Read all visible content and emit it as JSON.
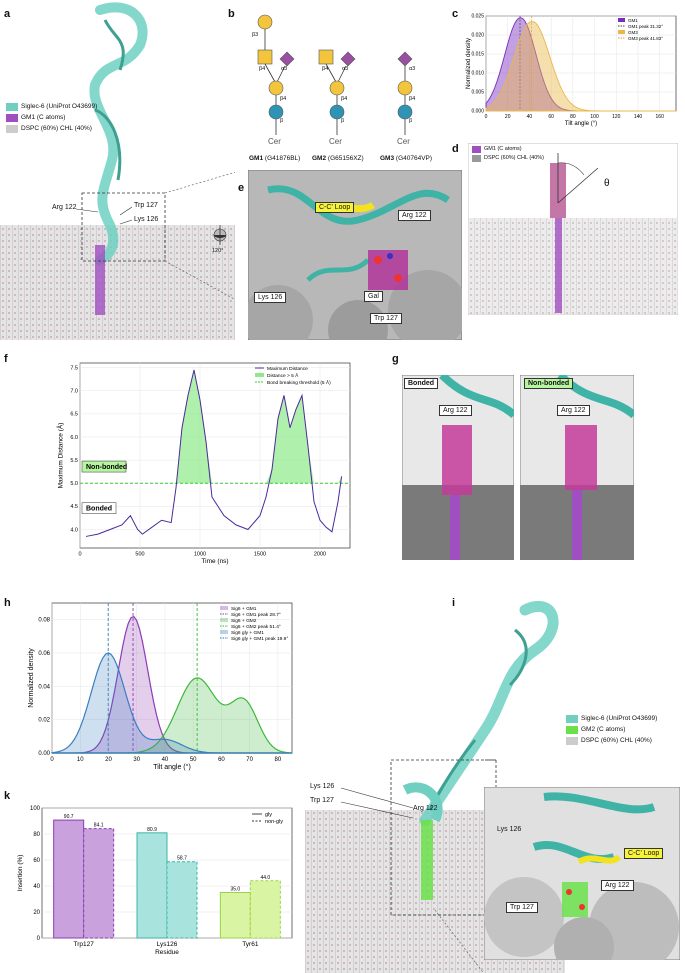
{
  "panels": {
    "a": {
      "letter": "a",
      "legend": [
        {
          "label": "Siglec-6 (UniProt O43699)",
          "color": "#6fd0c2"
        },
        {
          "label": "GM1 (C atoms)",
          "color": "#a04fc0"
        },
        {
          "label": "DSPC (60%) CHL (40%)",
          "color": "#cccccc"
        }
      ],
      "labels": [
        "Arg 122",
        "Trp 127",
        "Lys 126"
      ],
      "rotation": "120°"
    },
    "b": {
      "letter": "b",
      "glycans": [
        {
          "name": "GM1",
          "id": "(G41876BL)",
          "links": [
            "β3",
            "β4",
            "α3",
            "β4",
            "β"
          ]
        },
        {
          "name": "GM2",
          "id": "(G65156XZ)",
          "links": [
            "β4",
            "α3",
            "β4",
            "β"
          ]
        },
        {
          "name": "GM3",
          "id": "(G40764VP)",
          "links": [
            "α3",
            "β4",
            "β"
          ]
        }
      ],
      "cer": "Cer"
    },
    "c": {
      "letter": "c"
    },
    "d": {
      "letter": "d",
      "legend": [
        {
          "label": "GM1 (C atoms)",
          "color": "#a04fc0"
        },
        {
          "label": "DSPC (60%) CHL (40%)",
          "color": "#999999"
        }
      ],
      "theta": "θ"
    },
    "e": {
      "letter": "e",
      "labels": [
        "C-C' Loop",
        "Arg 122",
        "Lys 126",
        "Gal",
        "Trp 127"
      ]
    },
    "f": {
      "letter": "f",
      "inner_labels": [
        "Non-bonded",
        "Bonded"
      ]
    },
    "g": {
      "letter": "g",
      "tags": [
        "Bonded",
        "Non-bonded"
      ],
      "arg": "Arg 122"
    },
    "h": {
      "letter": "h"
    },
    "i": {
      "letter": "i",
      "legend": [
        {
          "label": "Siglec-6 (UniProt O43699)",
          "color": "#6fd0c2"
        },
        {
          "label": "GM2 (C atoms)",
          "color": "#6be04a"
        },
        {
          "label": "DSPC (60%) CHL (40%)",
          "color": "#cccccc"
        }
      ],
      "labels": [
        "Lys 126",
        "Trp 127",
        "Arg 122"
      ]
    },
    "j": {
      "letter": "j",
      "labels": [
        "Lys 126",
        "C-C' Loop",
        "Arg 122",
        "Trp 127"
      ]
    },
    "k": {
      "letter": "k"
    }
  },
  "chart_data": [
    {
      "id": "c",
      "type": "area",
      "xlabel": "Tilt angle (°)",
      "ylabel": "Normalized density",
      "xlim": [
        0,
        175
      ],
      "ylim": [
        0,
        0.025
      ],
      "xticks": [
        0,
        20,
        40,
        60,
        80,
        100,
        120,
        140,
        160
      ],
      "yticks": [
        0,
        0.005,
        0.01,
        0.015,
        0.02,
        0.025
      ],
      "ytick_labels": [
        "0.000",
        "0.005",
        "0.010",
        "0.015",
        "0.020",
        "0.025"
      ],
      "legend": "top-right",
      "series": [
        {
          "name": "GM1",
          "color": "#7b2cbf",
          "peak_label": "GM1 peak 31.32°",
          "peak": 31.32,
          "sigma": 14,
          "amp": 0.0245
        },
        {
          "name": "GM3",
          "color": "#e8b84a",
          "peak_label": "GM3 peak 41.83°",
          "peak": 41.83,
          "sigma": 16,
          "amp": 0.0235
        }
      ]
    },
    {
      "id": "f",
      "type": "line",
      "xlabel": "Time (ns)",
      "ylabel": "Maximum Distance (Å)",
      "xlim": [
        0,
        2250
      ],
      "ylim": [
        3.6,
        7.6
      ],
      "xticks": [
        0,
        500,
        1000,
        1500,
        2000
      ],
      "yticks": [
        4.0,
        4.5,
        5.0,
        5.5,
        6.0,
        6.5,
        7.0,
        7.5
      ],
      "ytick_labels": [
        "4.0",
        "4.5",
        "5.0",
        "5.5",
        "6.0",
        "6.5",
        "7.0",
        "7.5"
      ],
      "threshold": 5.0,
      "legend_entries": [
        "Maximum Distance",
        "Distance > 5 Å",
        "Bond breaking threshold (5 Å)"
      ],
      "x": [
        50,
        150,
        250,
        350,
        420,
        480,
        520,
        600,
        680,
        760,
        800,
        850,
        900,
        950,
        1000,
        1050,
        1100,
        1200,
        1300,
        1400,
        1500,
        1550,
        1600,
        1650,
        1700,
        1750,
        1800,
        1850,
        1900,
        1950,
        2000,
        2050,
        2100,
        2150,
        2180
      ],
      "y": [
        3.85,
        3.9,
        4.0,
        4.1,
        4.3,
        4.0,
        3.9,
        4.05,
        4.2,
        4.15,
        4.9,
        6.2,
        6.9,
        7.45,
        6.8,
        5.9,
        4.7,
        4.3,
        4.1,
        4.0,
        4.3,
        4.7,
        5.3,
        6.4,
        6.9,
        6.2,
        6.6,
        6.9,
        5.8,
        4.6,
        4.2,
        4.05,
        3.95,
        4.6,
        5.15
      ]
    },
    {
      "id": "h",
      "type": "area",
      "xlabel": "Tilt angle (°)",
      "ylabel": "Normalized density",
      "xlim": [
        0,
        85
      ],
      "ylim": [
        0,
        0.09
      ],
      "xticks": [
        0,
        10,
        20,
        30,
        40,
        50,
        60,
        70,
        80
      ],
      "yticks": [
        0,
        0.02,
        0.04,
        0.06,
        0.08
      ],
      "ytick_labels": [
        "0.00",
        "0.02",
        "0.04",
        "0.06",
        "0.08"
      ],
      "legend": "top-right",
      "series": [
        {
          "name": "Sig6 + GM1",
          "color": "#8e3bb5",
          "peak_label": "Sig6 + GM1 peak 28.7°",
          "peak": 28.7
        },
        {
          "name": "Sig6 + GM2",
          "color": "#3cb83c",
          "peak_label": "Sig6 + GM2 peak 51.4°",
          "peak": 51.4
        },
        {
          "name": "Sig6 gly + GM1",
          "color": "#3a7fc0",
          "peak_label": "Sig6 gly + GM1 peak 19.9°",
          "peak": 19.9
        }
      ]
    },
    {
      "id": "k",
      "type": "bar",
      "xlabel": "Residue",
      "ylabel": "Insertion (%)",
      "categories": [
        "Trp127",
        "Lys126",
        "Tyr61"
      ],
      "ylim": [
        0,
        100
      ],
      "yticks": [
        0,
        20,
        40,
        60,
        80,
        100
      ],
      "legend_entries": [
        "gly",
        "non-gly"
      ],
      "series": [
        {
          "name": "gly",
          "values": [
            90.7,
            80.9,
            35.0
          ],
          "labels": [
            "90.7",
            "80.9",
            "35.0"
          ]
        },
        {
          "name": "non-gly",
          "values": [
            84.1,
            58.7,
            44.0
          ],
          "labels": [
            "84.1",
            "58.7",
            "44.0"
          ]
        }
      ],
      "colors": [
        "#c9a1dc",
        "#a8e3de",
        "#d9f5a3"
      ],
      "edge_colors": [
        "#8e3bb5",
        "#3fb3a6",
        "#9ad34a"
      ]
    }
  ]
}
